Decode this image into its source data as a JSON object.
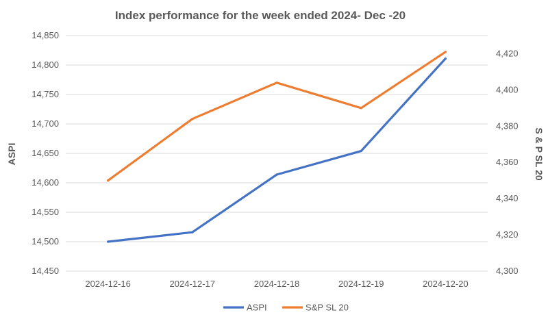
{
  "chart_data": {
    "type": "line",
    "title": "Index performance for the week ended 2024- Dec -20",
    "categories": [
      "2024-12-16",
      "2024-12-17",
      "2024-12-18",
      "2024-12-19",
      "2024-12-20"
    ],
    "xlabel": "",
    "ylabel": "ASPI",
    "y2label": "S & P SL 20",
    "ylim": [
      14450,
      14850
    ],
    "y_ticks": [
      "14,450",
      "14,500",
      "14,550",
      "14,600",
      "14,650",
      "14,700",
      "14,750",
      "14,800",
      "14,850"
    ],
    "y2lim": [
      4300,
      4430
    ],
    "y2_ticks": [
      "4,300",
      "4,320",
      "4,340",
      "4,360",
      "4,380",
      "4,400",
      "4,420"
    ],
    "grid": true,
    "legend": "bottom",
    "series": [
      {
        "name": "ASPI",
        "axis": "left",
        "color": "#4472C4",
        "values": [
          14500,
          14516,
          14614,
          14654,
          14811
        ]
      },
      {
        "name": "S&P SL 20",
        "axis": "right",
        "color": "#ED7D31",
        "values": [
          4350,
          4384,
          4404,
          4390,
          4421
        ]
      }
    ]
  }
}
